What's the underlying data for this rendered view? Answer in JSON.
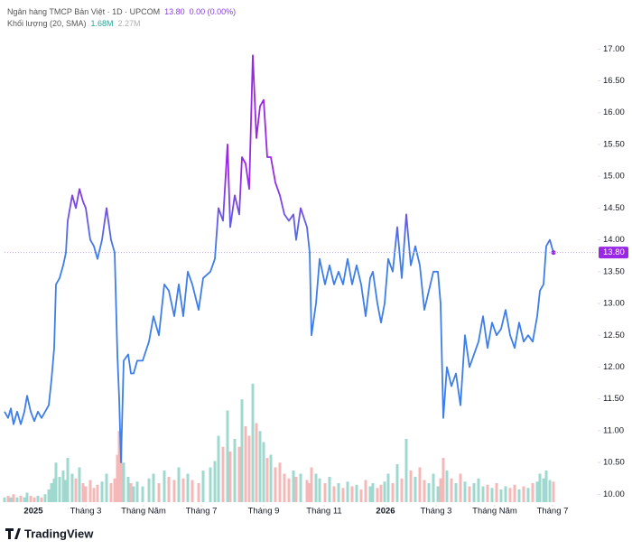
{
  "header": {
    "title": "Ngân hàng TMCP Bản Việt · 1D · UPCOM",
    "change": "0.00 (0.00%)",
    "volume_label": "Khối lượng (20, SMA)",
    "volume_value": "1.68M",
    "volume_sma": "2.27M"
  },
  "brand": "TradingView",
  "chart_data": {
    "type": "line",
    "price_label": {
      "value": 13.8,
      "label": "13.80"
    },
    "line_colors": [
      "#3d7eea",
      "#9a27e6"
    ],
    "volume_colors": [
      "#9fd8cf",
      "#f5b8b8"
    ],
    "grid": false,
    "x": [
      5,
      9,
      12,
      15,
      19,
      23,
      27,
      30,
      34,
      38,
      42,
      46,
      50,
      54,
      57,
      60,
      62,
      66,
      70,
      73,
      75,
      80,
      84,
      88,
      92,
      95,
      100,
      104,
      108,
      113,
      118,
      123,
      127,
      130,
      132,
      134,
      137,
      142,
      145,
      148,
      152,
      158,
      165,
      170,
      176,
      182,
      187,
      193,
      198,
      203,
      208,
      213,
      220,
      225,
      233,
      238,
      242,
      247,
      252,
      255,
      260,
      265,
      268,
      272,
      276,
      280,
      284,
      288,
      292,
      296,
      300,
      305,
      310,
      315,
      320,
      325,
      328,
      333,
      340,
      343,
      345,
      350,
      354,
      360,
      365,
      370,
      375,
      380,
      385,
      390,
      395,
      400,
      405,
      410,
      413,
      418,
      422,
      426,
      430,
      435,
      440,
      445,
      450,
      455,
      460,
      465,
      470,
      475,
      480,
      485,
      488,
      491,
      495,
      500,
      505,
      510,
      515,
      520,
      525,
      530,
      535,
      540,
      545,
      550,
      555,
      560,
      565,
      570,
      575,
      580,
      585,
      590,
      595,
      598,
      602,
      605,
      609,
      613
    ],
    "series": [
      {
        "name": "Price",
        "values": [
          11.3,
          11.2,
          11.35,
          11.1,
          11.3,
          11.1,
          11.3,
          11.55,
          11.3,
          11.15,
          11.3,
          11.2,
          11.3,
          11.4,
          11.8,
          12.3,
          13.3,
          13.4,
          13.6,
          13.8,
          14.3,
          14.7,
          14.5,
          14.8,
          14.6,
          14.5,
          14.0,
          13.9,
          13.7,
          14.0,
          14.5,
          14.0,
          13.8,
          12.2,
          11.5,
          10.5,
          12.1,
          12.2,
          11.9,
          11.9,
          12.1,
          12.1,
          12.4,
          12.8,
          12.5,
          13.3,
          13.2,
          12.8,
          13.3,
          12.8,
          13.5,
          13.3,
          12.9,
          13.4,
          13.5,
          13.7,
          14.5,
          14.3,
          15.5,
          14.2,
          14.7,
          14.4,
          15.3,
          15.2,
          14.8,
          16.9,
          15.6,
          16.1,
          16.2,
          15.3,
          15.3,
          14.9,
          14.7,
          14.4,
          14.3,
          14.4,
          14.0,
          14.5,
          14.2,
          13.8,
          12.5,
          13.0,
          13.7,
          13.3,
          13.6,
          13.3,
          13.5,
          13.3,
          13.7,
          13.3,
          13.6,
          13.3,
          12.8,
          13.4,
          13.5,
          13.0,
          12.7,
          13.0,
          13.7,
          13.5,
          14.2,
          13.4,
          14.4,
          13.6,
          13.9,
          13.6,
          12.9,
          13.2,
          13.5,
          13.5,
          13.0,
          11.2,
          12.0,
          11.7,
          11.9,
          11.4,
          12.5,
          12.0,
          12.2,
          12.4,
          12.8,
          12.3,
          12.7,
          12.5,
          12.6,
          12.9,
          12.5,
          12.3,
          12.7,
          12.4,
          12.5,
          12.4,
          12.8,
          13.2,
          13.3,
          13.9,
          14.0,
          13.8
        ]
      },
      {
        "name": "Volume",
        "axis": "y2",
        "values": [
          0.3,
          0.4,
          0.3,
          0.5,
          0.3,
          0.4,
          0.3,
          0.6,
          0.4,
          0.3,
          0.4,
          0.3,
          0.5,
          0.8,
          1.2,
          1.5,
          2.5,
          1.6,
          2.0,
          1.4,
          2.8,
          1.8,
          1.5,
          2.2,
          1.2,
          1.0,
          1.4,
          0.9,
          1.1,
          1.3,
          1.8,
          1.2,
          1.5,
          3.0,
          4.5,
          3.8,
          2.5,
          1.6,
          1.2,
          1.0,
          1.3,
          1.0,
          1.5,
          1.8,
          1.2,
          2.0,
          1.6,
          1.4,
          2.2,
          1.5,
          1.8,
          1.4,
          1.2,
          2.0,
          2.2,
          2.6,
          4.2,
          3.5,
          5.8,
          3.2,
          4.0,
          3.5,
          6.5,
          4.8,
          4.2,
          7.5,
          5.0,
          4.5,
          3.8,
          2.8,
          3.0,
          2.2,
          2.5,
          1.8,
          1.5,
          2.0,
          1.6,
          1.8,
          1.4,
          1.2,
          2.2,
          1.8,
          1.5,
          1.2,
          1.6,
          1.0,
          1.2,
          0.9,
          1.3,
          1.0,
          1.1,
          0.8,
          1.4,
          1.0,
          1.2,
          0.9,
          1.1,
          1.3,
          1.8,
          1.2,
          2.4,
          1.5,
          4.0,
          2.0,
          1.6,
          2.2,
          1.4,
          1.2,
          1.8,
          1.0,
          1.5,
          2.8,
          2.0,
          1.5,
          1.2,
          1.8,
          1.3,
          1.0,
          1.2,
          1.5,
          1.0,
          1.1,
          0.9,
          1.2,
          0.8,
          1.0,
          0.9,
          1.1,
          0.8,
          1.0,
          0.9,
          1.2,
          1.3,
          1.8,
          1.5,
          2.0,
          1.4,
          1.3
        ]
      }
    ],
    "xlim": [
      5,
      660
    ],
    "xticks": [
      {
        "value": 37,
        "label": "2025"
      },
      {
        "value": 95,
        "label": "Tháng 3"
      },
      {
        "value": 159,
        "label": "Tháng Năm"
      },
      {
        "value": 223,
        "label": "Tháng 7"
      },
      {
        "value": 292,
        "label": "Tháng 9"
      },
      {
        "value": 359,
        "label": "Tháng 11"
      },
      {
        "value": 427,
        "label": "2026"
      },
      {
        "value": 483,
        "label": "Tháng 3"
      },
      {
        "value": 548,
        "label": "Tháng Năm"
      },
      {
        "value": 612,
        "label": "Tháng 7"
      }
    ],
    "ylim": [
      9.82,
      17.7
    ],
    "yticks": [
      {
        "value": 10,
        "label": "10.00"
      },
      {
        "value": 10.5,
        "label": "10.50"
      },
      {
        "value": 11,
        "label": "11.00"
      },
      {
        "value": 11.5,
        "label": "11.50"
      },
      {
        "value": 12,
        "label": "12.00"
      },
      {
        "value": 12.5,
        "label": "12.50"
      },
      {
        "value": 13,
        "label": "13.00"
      },
      {
        "value": 13.5,
        "label": "13.50"
      },
      {
        "value": 14,
        "label": "14.00"
      },
      {
        "value": 14.5,
        "label": "14.50"
      },
      {
        "value": 15,
        "label": "15.00"
      },
      {
        "value": 15.5,
        "label": "15.50"
      },
      {
        "value": 16,
        "label": "16.00"
      },
      {
        "value": 16.5,
        "label": "16.50"
      },
      {
        "value": 17,
        "label": "17.00"
      }
    ],
    "y2lim": [
      0,
      10
    ]
  }
}
